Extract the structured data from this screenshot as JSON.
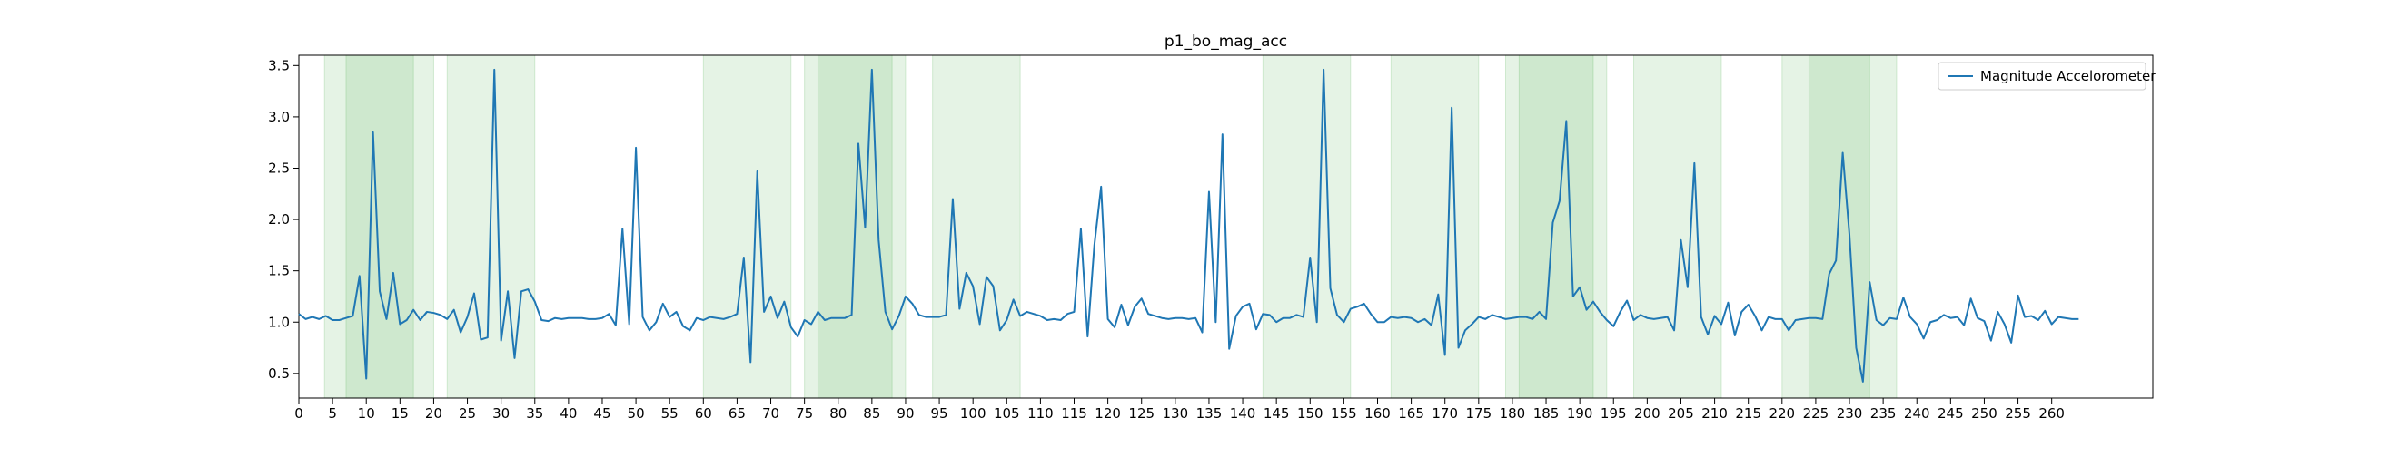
{
  "chart_data": {
    "type": "line",
    "title": "p1_bo_mag_acc",
    "xlabel": "",
    "ylabel": "",
    "xlim": [
      0,
      275
    ],
    "ylim": [
      0.26,
      3.6
    ],
    "x_ticks": [
      0,
      5,
      10,
      15,
      20,
      25,
      30,
      35,
      40,
      45,
      50,
      55,
      60,
      65,
      70,
      75,
      80,
      85,
      90,
      95,
      100,
      105,
      110,
      115,
      120,
      125,
      130,
      135,
      140,
      145,
      150,
      155,
      160,
      165,
      170,
      175,
      180,
      185,
      190,
      195,
      200,
      205,
      210,
      215,
      220,
      225,
      230,
      235,
      240,
      245,
      250,
      255,
      260
    ],
    "y_ticks": [
      0.5,
      1.0,
      1.5,
      2.0,
      2.5,
      3.0,
      3.5
    ],
    "grid": false,
    "legend_position": "top-right",
    "colors": {
      "line": "#1f77b4",
      "band": "#2ca02c"
    },
    "shaded_regions": [
      {
        "start": 3.8,
        "end": 20.0
      },
      {
        "start": 7.0,
        "end": 17.0
      },
      {
        "start": 22.0,
        "end": 35.0
      },
      {
        "start": 60.0,
        "end": 73.0
      },
      {
        "start": 75.0,
        "end": 90.0
      },
      {
        "start": 77.0,
        "end": 88.0
      },
      {
        "start": 94.0,
        "end": 107.0
      },
      {
        "start": 143.0,
        "end": 156.0
      },
      {
        "start": 162.0,
        "end": 175.0
      },
      {
        "start": 179.0,
        "end": 194.0
      },
      {
        "start": 181.0,
        "end": 192.0
      },
      {
        "start": 198.0,
        "end": 211.0
      },
      {
        "start": 220.0,
        "end": 237.0
      },
      {
        "start": 224.0,
        "end": 233.0
      }
    ],
    "series": [
      {
        "name": "Magnitude Accelorometer",
        "x_start": 0,
        "x_step": 1,
        "values": [
          1.08,
          1.03,
          1.05,
          1.03,
          1.06,
          1.02,
          1.02,
          1.04,
          1.06,
          1.45,
          0.45,
          2.85,
          1.3,
          1.03,
          1.48,
          0.98,
          1.02,
          1.12,
          1.02,
          1.1,
          1.09,
          1.07,
          1.03,
          1.12,
          0.9,
          1.05,
          1.28,
          0.83,
          0.85,
          3.46,
          0.82,
          1.3,
          0.65,
          1.3,
          1.32,
          1.2,
          1.02,
          1.01,
          1.04,
          1.03,
          1.04,
          1.04,
          1.04,
          1.03,
          1.03,
          1.04,
          1.08,
          0.97,
          1.91,
          0.98,
          2.7,
          1.05,
          0.92,
          1.0,
          1.18,
          1.05,
          1.1,
          0.96,
          0.92,
          1.04,
          1.02,
          1.05,
          1.04,
          1.03,
          1.05,
          1.08,
          1.63,
          0.61,
          2.47,
          1.1,
          1.25,
          1.04,
          1.2,
          0.95,
          0.86,
          1.02,
          0.98,
          1.1,
          1.02,
          1.04,
          1.04,
          1.04,
          1.07,
          2.74,
          1.92,
          3.46,
          1.8,
          1.1,
          0.93,
          1.06,
          1.25,
          1.18,
          1.07,
          1.05,
          1.05,
          1.05,
          1.07,
          2.2,
          1.13,
          1.48,
          1.35,
          0.98,
          1.44,
          1.35,
          0.92,
          1.02,
          1.22,
          1.06,
          1.1,
          1.08,
          1.06,
          1.02,
          1.03,
          1.02,
          1.08,
          1.1,
          1.91,
          0.86,
          1.75,
          2.32,
          1.03,
          0.95,
          1.17,
          0.97,
          1.15,
          1.23,
          1.08,
          1.06,
          1.04,
          1.03,
          1.04,
          1.04,
          1.03,
          1.04,
          0.9,
          2.27,
          1.0,
          2.83,
          0.74,
          1.06,
          1.15,
          1.18,
          0.93,
          1.08,
          1.07,
          1.0,
          1.04,
          1.04,
          1.07,
          1.05,
          1.63,
          1.0,
          3.46,
          1.33,
          1.07,
          1.0,
          1.13,
          1.15,
          1.18,
          1.08,
          1.0,
          1.0,
          1.05,
          1.04,
          1.05,
          1.04,
          1.0,
          1.03,
          0.97,
          1.27,
          0.68,
          3.09,
          0.75,
          0.92,
          0.98,
          1.05,
          1.03,
          1.07,
          1.05,
          1.03,
          1.04,
          1.05,
          1.05,
          1.03,
          1.1,
          1.03,
          1.97,
          2.18,
          2.96,
          1.25,
          1.34,
          1.12,
          1.2,
          1.1,
          1.02,
          0.96,
          1.1,
          1.21,
          1.02,
          1.07,
          1.04,
          1.03,
          1.04,
          1.05,
          0.92,
          1.8,
          1.34,
          2.55,
          1.05,
          0.88,
          1.06,
          0.98,
          1.19,
          0.87,
          1.1,
          1.17,
          1.06,
          0.92,
          1.05,
          1.03,
          1.03,
          0.92,
          1.02,
          1.03,
          1.04,
          1.04,
          1.03,
          1.47,
          1.6,
          2.65,
          1.85,
          0.75,
          0.42,
          1.39,
          1.02,
          0.97,
          1.04,
          1.03,
          1.24,
          1.05,
          0.98,
          0.84,
          1.0,
          1.02,
          1.07,
          1.04,
          1.05,
          0.97,
          1.23,
          1.04,
          1.01,
          0.82,
          1.1,
          0.98,
          0.8,
          1.26,
          1.05,
          1.06,
          1.02,
          1.11,
          0.98,
          1.05,
          1.04,
          1.03,
          1.03
        ]
      }
    ]
  }
}
